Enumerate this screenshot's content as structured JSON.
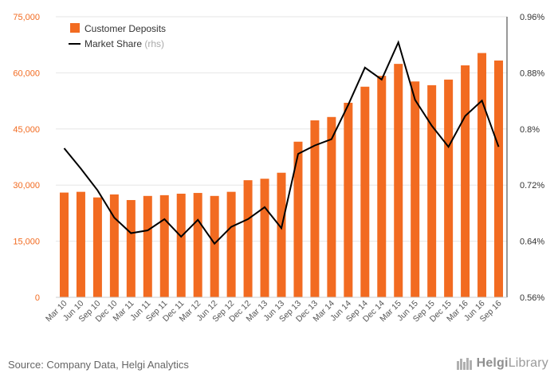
{
  "chart_data": {
    "type": "bar+line",
    "categories": [
      "Mar 10",
      "Jun 10",
      "Sep 10",
      "Dec 10",
      "Mar 11",
      "Jun 11",
      "Sep 11",
      "Dec 11",
      "Mar 12",
      "Jun 12",
      "Sep 12",
      "Dec 12",
      "Mar 13",
      "Jun 13",
      "Sep 13",
      "Dec 13",
      "Mar 14",
      "Jun 14",
      "Sep 14",
      "Dec 14",
      "Mar 15",
      "Jun 15",
      "Sep 15",
      "Dec 15",
      "Mar 16",
      "Jun 16",
      "Sep 16"
    ],
    "series": [
      {
        "name": "Customer Deposits",
        "type": "bar",
        "axis": "left",
        "color": "#f26b21",
        "values": [
          28000,
          28200,
          26700,
          27500,
          26000,
          27100,
          27300,
          27700,
          27900,
          27100,
          28200,
          31300,
          31700,
          33300,
          41600,
          47300,
          48200,
          52000,
          56300,
          59200,
          62400,
          57700,
          56700,
          58200,
          62000,
          65300,
          63300
        ]
      },
      {
        "name": "Market Share",
        "suffix": "(rhs)",
        "type": "line",
        "axis": "right",
        "color": "#000000",
        "values": [
          0.7725,
          0.7435,
          0.7125,
          0.6735,
          0.6515,
          0.6555,
          0.6715,
          0.6465,
          0.6705,
          0.6365,
          0.6605,
          0.6715,
          0.6885,
          0.6585,
          0.7645,
          0.7765,
          0.7855,
          0.8345,
          0.8875,
          0.8705,
          0.9235,
          0.8415,
          0.8045,
          0.7745,
          0.8185,
          0.8405,
          0.7745
        ]
      }
    ],
    "y_left": {
      "min": 0,
      "max": 75000,
      "ticks": [
        "0",
        "15,000",
        "30,000",
        "45,000",
        "60,000",
        "75,000"
      ]
    },
    "y_right": {
      "min": 0.56,
      "max": 0.96,
      "ticks": [
        "0.56%",
        "0.64%",
        "0.72%",
        "0.8%",
        "0.88%",
        "0.96%"
      ]
    },
    "legend_position": "top-left",
    "grid": true
  },
  "footer": {
    "source": "Source: Company Data, Helgi Analytics",
    "logo_prefix": "Helgi",
    "logo_suffix": "Library"
  },
  "colors": {
    "accent": "#f26b21",
    "axis_left_text": "#f26b21",
    "grid": "#e6e6e6"
  }
}
